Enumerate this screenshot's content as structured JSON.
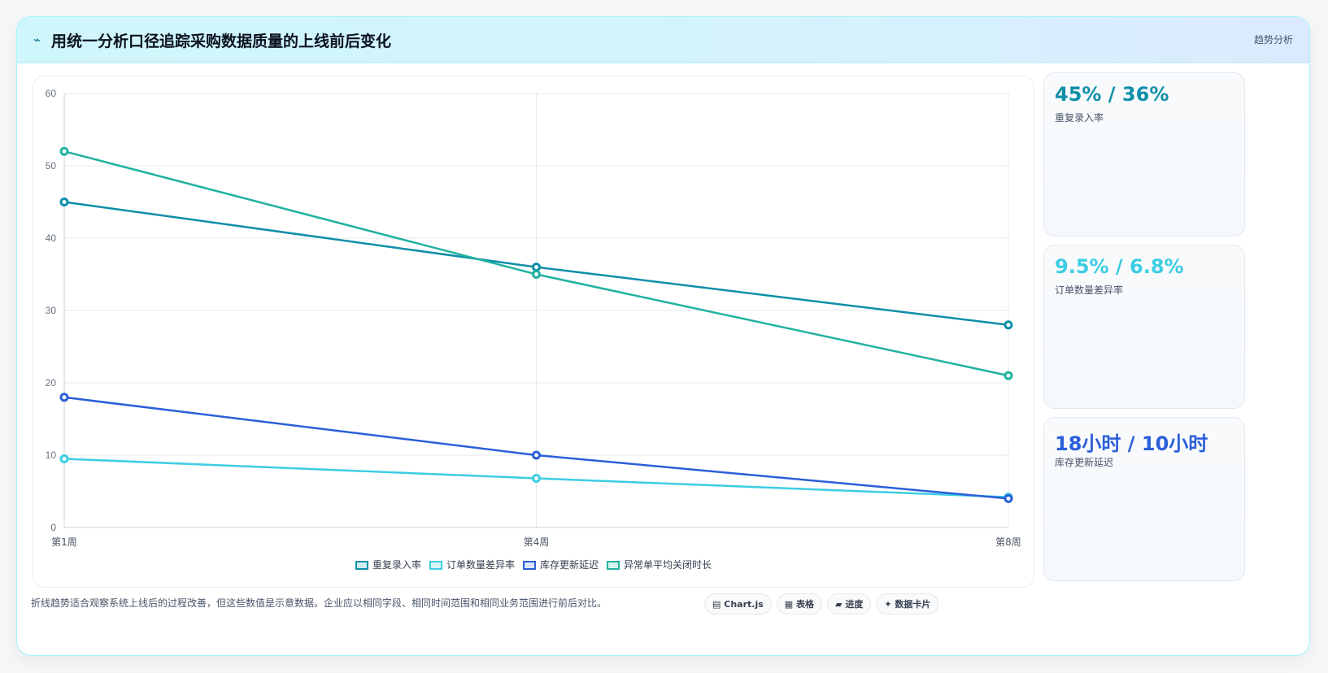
{
  "header": {
    "icon": "⌁",
    "title": "用统一分析口径追踪采购数据质量的上线前后变化",
    "tag": "趋势分析"
  },
  "chart_data": {
    "type": "line",
    "categories": [
      "第1周",
      "第4周",
      "第8周"
    ],
    "ylim": [
      0,
      60
    ],
    "yticks": [
      0,
      10,
      20,
      30,
      40,
      50,
      60
    ],
    "grid": true,
    "legend_position": "bottom",
    "series": [
      {
        "name": "重复录入率",
        "values": [
          45,
          36,
          28
        ],
        "color": "#0e8fa8"
      },
      {
        "name": "订单数量差异率",
        "values": [
          9.5,
          6.8,
          4.2
        ],
        "color": "#3ccde3"
      },
      {
        "name": "库存更新延迟",
        "values": [
          18,
          10,
          4
        ],
        "color": "#2b5fd9"
      },
      {
        "name": "异常单平均关闭时长",
        "values": [
          52,
          35,
          21
        ],
        "color": "#20b2a0"
      }
    ]
  },
  "kpis": [
    {
      "value": "45% / 36%",
      "label": "重复录入率",
      "color": "#0e8fa8"
    },
    {
      "value": "9.5% / 6.8%",
      "label": "订单数量差异率",
      "color": "#3ccde3"
    },
    {
      "value": "18小时 / 10小时",
      "label": "库存更新延迟",
      "color": "#2b5fd9"
    }
  ],
  "footer": {
    "note": "折线趋势适合观察系统上线后的过程改善，但这些数值是示意数据。企业应以相同字段、相同时间范围和相同业务范围进行前后对比。",
    "chips": [
      {
        "icon": "▤",
        "label": "Chart.js"
      },
      {
        "icon": "▦",
        "label": "表格"
      },
      {
        "icon": "▰",
        "label": "进度"
      },
      {
        "icon": "✦",
        "label": "数据卡片"
      }
    ]
  }
}
